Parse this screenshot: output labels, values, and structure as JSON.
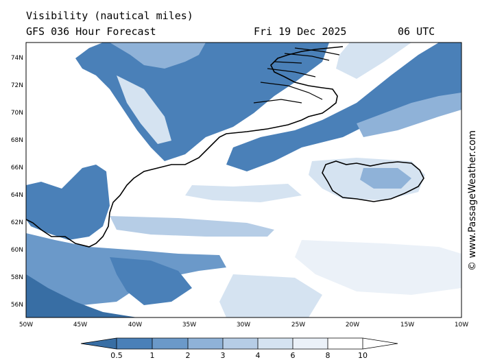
{
  "header": {
    "title": "Visibility (nautical miles)",
    "subtitle": "GFS 036 Hour Forecast",
    "date": "Fri 19 Dec 2025",
    "time": "06 UTC"
  },
  "credit": "© www.PassageWeather.com",
  "map": {
    "lat_ticks": [
      "74N",
      "72N",
      "70N",
      "68N",
      "66N",
      "64N",
      "62N",
      "60N",
      "58N",
      "56N"
    ],
    "lon_ticks": [
      "50W",
      "45W",
      "40W",
      "35W",
      "30W",
      "25W",
      "20W",
      "15W",
      "10W"
    ],
    "lat_range": [
      55,
      75
    ],
    "lon_range": [
      -50,
      -10
    ]
  },
  "legend": {
    "labels": [
      "0.5",
      "1",
      "2",
      "3",
      "4",
      "6",
      "8",
      "10"
    ],
    "colors": [
      "#386ea4",
      "#4a80b8",
      "#6b99c9",
      "#8fb2d8",
      "#b6cde6",
      "#d5e3f1",
      "#ebf1f8",
      "#ffffff"
    ]
  }
}
